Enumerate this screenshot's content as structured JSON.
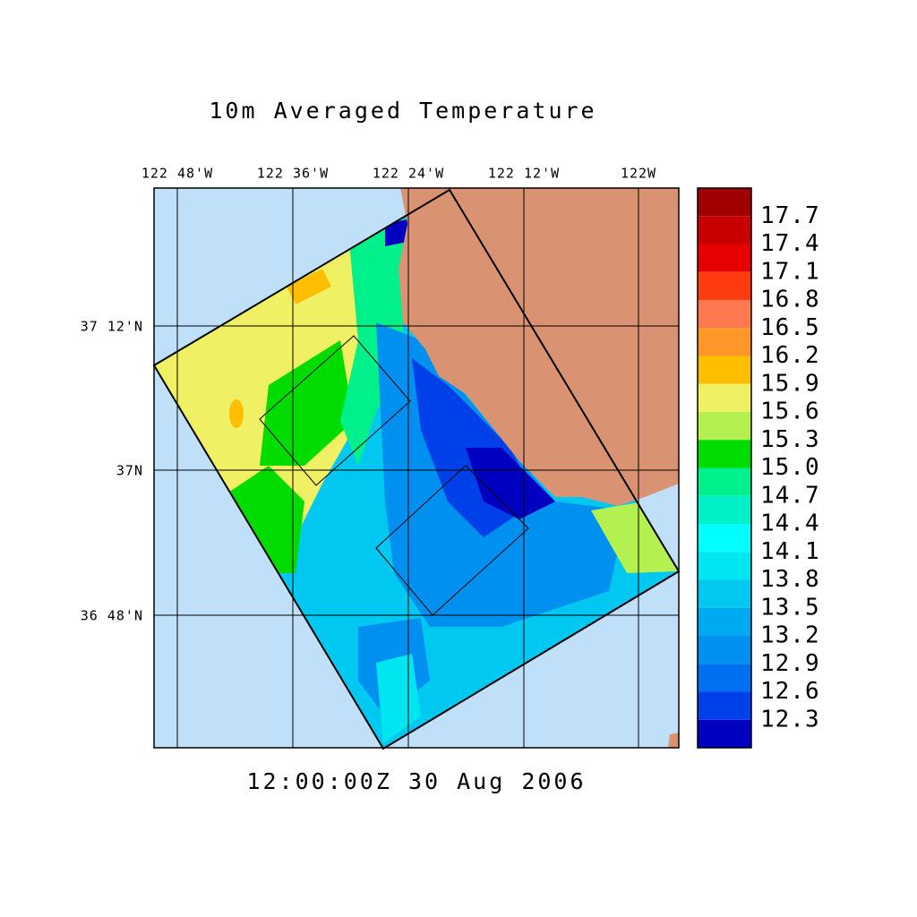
{
  "title": "10m Averaged Temperature",
  "time_label": "12:00:00Z  30 Aug 2006",
  "lon_labels": [
    "122 48'W",
    "122 36'W",
    "122 24'W",
    "122 12'W",
    "122W"
  ],
  "lat_labels": [
    "37 12'N",
    "37N",
    "36 48'N"
  ],
  "colorbar": {
    "labels": [
      "17.7",
      "17.4",
      "17.1",
      "16.8",
      "16.5",
      "16.2",
      "15.9",
      "15.6",
      "15.3",
      "15.0",
      "14.7",
      "14.4",
      "14.1",
      "13.8",
      "13.5",
      "13.2",
      "12.9",
      "12.6",
      "12.3"
    ],
    "colors": [
      "#a00000",
      "#c80000",
      "#e60000",
      "#ff3c10",
      "#ff7850",
      "#ff9628",
      "#ffbe00",
      "#f0f064",
      "#b4f050",
      "#00dc00",
      "#00f08c",
      "#00f0c8",
      "#00ffff",
      "#00e6f0",
      "#00c8f0",
      "#00aaf0",
      "#0090f0",
      "#0070f0",
      "#0040e8",
      "#0000c0"
    ]
  }
}
